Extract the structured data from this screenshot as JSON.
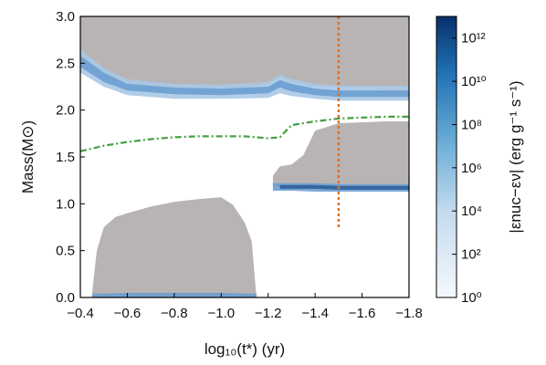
{
  "chart_data": {
    "type": "area",
    "xlabel": "log₁₀(t*) (yr)",
    "ylabel": "Mass(M⊙)",
    "colorbar_label": "|εnuc−εν| (erg g⁻¹ s⁻¹)",
    "xlim": [
      -0.4,
      -1.8
    ],
    "ylim": [
      0.0,
      3.0
    ],
    "x_ticks": [
      "−0.4",
      "−0.6",
      "−0.8",
      "−1.0",
      "−1.2",
      "−1.4",
      "−1.6",
      "−1.8"
    ],
    "y_ticks": [
      "0.0",
      "0.5",
      "1.0",
      "1.5",
      "2.0",
      "2.5",
      "3.0"
    ],
    "colorbar_ticks": [
      "10⁰",
      "10²",
      "10⁴",
      "10⁶",
      "10⁸",
      "10¹⁰",
      "10¹²"
    ],
    "colorbar_range_log10": [
      0,
      13
    ],
    "colors": {
      "convective_region": "#b9b4b4",
      "burning_light": "#a9c8e6",
      "burning_mid": "#6b9fd0",
      "burning_dark": "#2f5f9a",
      "dashed_line": "#45a043",
      "vertical_marker": "#e0701f"
    },
    "vertical_marker": {
      "x": -1.5,
      "y_range": [
        0.75,
        3.0
      ]
    },
    "dashed_line": {
      "x": [
        -0.4,
        -0.5,
        -0.6,
        -0.7,
        -0.8,
        -0.9,
        -1.0,
        -1.1,
        -1.2,
        -1.25,
        -1.28,
        -1.3,
        -1.35,
        -1.4,
        -1.5,
        -1.6,
        -1.7,
        -1.8
      ],
      "y": [
        1.56,
        1.62,
        1.66,
        1.69,
        1.71,
        1.72,
        1.72,
        1.72,
        1.7,
        1.71,
        1.79,
        1.84,
        1.86,
        1.88,
        1.91,
        1.92,
        1.93,
        1.93
      ]
    },
    "convective_regions": [
      {
        "name": "outer envelope",
        "x": [
          -0.4,
          -0.45,
          -0.5,
          -0.55,
          -0.6,
          -0.7,
          -0.8,
          -0.9,
          -1.0,
          -1.1,
          -1.2,
          -1.25,
          -1.3,
          -1.4,
          -1.5,
          -1.6,
          -1.7,
          -1.8
        ],
        "y_low": [
          2.52,
          2.45,
          2.33,
          2.28,
          2.26,
          2.24,
          2.23,
          2.23,
          2.23,
          2.24,
          2.27,
          2.35,
          2.3,
          2.25,
          2.24,
          2.23,
          2.22,
          2.21
        ],
        "y_high": [
          3.0,
          3.0,
          3.0,
          3.0,
          3.0,
          3.0,
          3.0,
          3.0,
          3.0,
          3.0,
          3.0,
          3.0,
          3.0,
          3.0,
          3.0,
          3.0,
          3.0,
          3.0
        ]
      },
      {
        "name": "inner core",
        "x": [
          -0.45,
          -0.47,
          -0.5,
          -0.55,
          -0.6,
          -0.7,
          -0.8,
          -0.9,
          -1.0,
          -1.05,
          -1.1,
          -1.13,
          -1.15
        ],
        "y_low": [
          0.0,
          0.0,
          0.0,
          0.0,
          0.0,
          0.0,
          0.0,
          0.0,
          0.0,
          0.0,
          0.0,
          0.0,
          0.0
        ],
        "y_high": [
          0.05,
          0.5,
          0.75,
          0.86,
          0.9,
          0.97,
          1.02,
          1.05,
          1.07,
          0.99,
          0.8,
          0.6,
          0.0
        ]
      },
      {
        "name": "shell",
        "x": [
          -1.22,
          -1.25,
          -1.3,
          -1.35,
          -1.4,
          -1.5,
          -1.6,
          -1.7,
          -1.8
        ],
        "y_low": [
          1.18,
          1.18,
          1.18,
          1.17,
          1.17,
          1.16,
          1.16,
          1.16,
          1.16
        ],
        "y_high": [
          1.3,
          1.4,
          1.42,
          1.52,
          1.78,
          1.86,
          1.87,
          1.88,
          1.88
        ]
      }
    ],
    "burning_bands": [
      {
        "x": [
          -0.4,
          -0.5,
          -0.6,
          -0.8,
          -1.0,
          -1.2,
          -1.25,
          -1.3,
          -1.4,
          -1.5,
          -1.8
        ],
        "y_low": [
          2.4,
          2.25,
          2.16,
          2.12,
          2.12,
          2.13,
          2.18,
          2.15,
          2.12,
          2.1,
          2.1
        ],
        "y_high": [
          2.65,
          2.45,
          2.33,
          2.28,
          2.27,
          2.3,
          2.38,
          2.33,
          2.28,
          2.26,
          2.26
        ],
        "level": 1
      },
      {
        "x": [
          -0.4,
          -0.5,
          -0.6,
          -0.8,
          -1.0,
          -1.2,
          -1.25,
          -1.3,
          -1.4,
          -1.5,
          -1.8
        ],
        "y_low": [
          2.46,
          2.3,
          2.21,
          2.17,
          2.16,
          2.18,
          2.24,
          2.2,
          2.16,
          2.14,
          2.14
        ],
        "y_high": [
          2.58,
          2.4,
          2.28,
          2.24,
          2.23,
          2.25,
          2.32,
          2.28,
          2.23,
          2.21,
          2.21
        ],
        "level": 2
      },
      {
        "x": [
          -1.22,
          -1.3,
          -1.4,
          -1.5,
          -1.6,
          -1.8
        ],
        "y_low": [
          1.14,
          1.14,
          1.13,
          1.13,
          1.13,
          1.13
        ],
        "y_high": [
          1.22,
          1.22,
          1.22,
          1.21,
          1.21,
          1.21
        ],
        "level": 2
      },
      {
        "x": [
          -1.25,
          -1.3,
          -1.4,
          -1.5,
          -1.6,
          -1.8
        ],
        "y_low": [
          1.16,
          1.16,
          1.16,
          1.15,
          1.15,
          1.15
        ],
        "y_high": [
          1.2,
          1.2,
          1.2,
          1.19,
          1.19,
          1.19
        ],
        "level": 3
      },
      {
        "x": [
          -0.45,
          -0.6,
          -0.8,
          -1.0,
          -1.15
        ],
        "y_low": [
          0.0,
          0.0,
          0.0,
          0.0,
          0.0
        ],
        "y_high": [
          0.04,
          0.05,
          0.05,
          0.05,
          0.04
        ],
        "level": 2
      }
    ]
  }
}
